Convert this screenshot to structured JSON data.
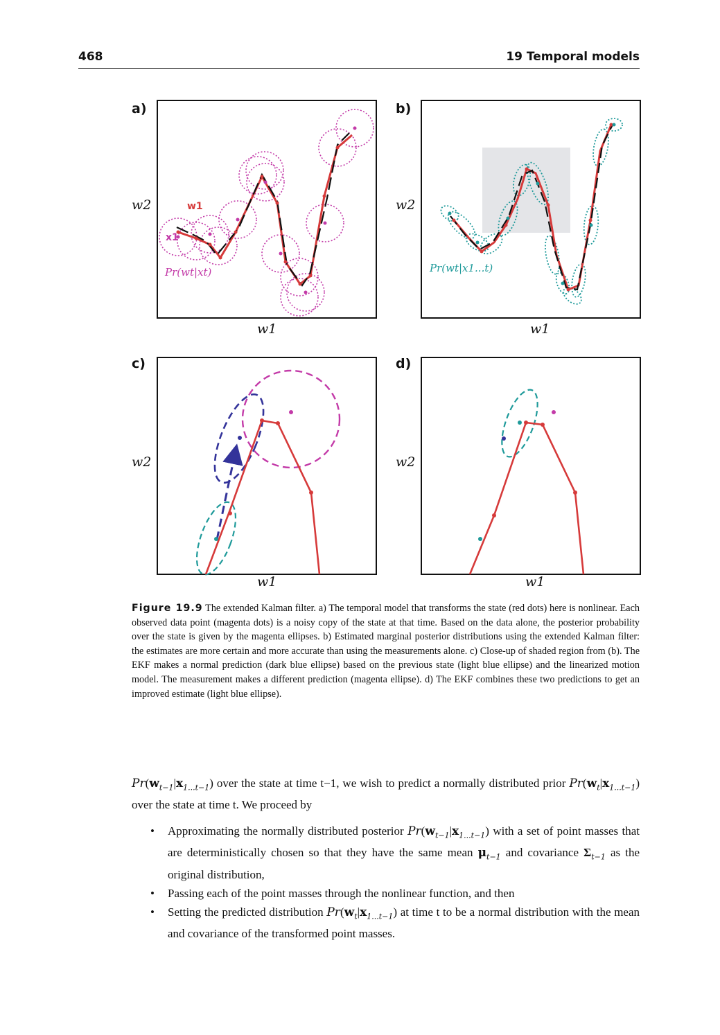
{
  "header": {
    "page_number": "468",
    "chapter_title": "19 Temporal models"
  },
  "figure": {
    "panels": [
      {
        "letter": "a)",
        "xlabel": "w1",
        "ylabel": "w2",
        "annotations": [
          "w1",
          "x1",
          "Pr(wt|xt)"
        ]
      },
      {
        "letter": "b)",
        "xlabel": "w1",
        "ylabel": "w2",
        "annotations": [
          "Pr(wt|x1...t)"
        ]
      },
      {
        "letter": "c)",
        "xlabel": "w1",
        "ylabel": "w2",
        "annotations": []
      },
      {
        "letter": "d)",
        "xlabel": "w1",
        "ylabel": "w2",
        "annotations": []
      }
    ],
    "colors": {
      "state": "#d63a3a",
      "measurement": "#c33aa8",
      "estimate": "#1e9a9a",
      "prediction": "#33339a",
      "shade": "#e4e5e8"
    },
    "caption_label": "Figure 19.9",
    "caption_text": "The extended Kalman filter. a) The temporal model that transforms the state (red dots) here is nonlinear. Each observed data point (magenta dots) is a noisy copy of the state at that time. Based on the data alone, the posterior probability over the state is given by the magenta ellipses. b) Estimated marginal posterior distributions using the extended Kalman filter: the estimates are more certain and more accurate than using the measurements alone. c) Close-up of shaded region from (b). The EKF makes a normal prediction (dark blue ellipse) based on the previous state (light blue ellipse) and the linearized motion model. The measurement makes a different prediction (magenta ellipse). d) The EKF combines these two predictions to get an improved estimate (light blue ellipse)."
  },
  "body": {
    "para_1": "over the state at time t−1, we wish to predict a normally distributed",
    "para_1b": "prior",
    "para_1c": "over the state at time t. We proceed by",
    "bullet_1a": "Approximating the normally distributed posterior",
    "bullet_1b": "with a set of point masses that are deterministically chosen so that they have the same mean",
    "bullet_1c": "and covariance",
    "bullet_1d": "as the original distribution,",
    "bullet_2": "Passing each of the point masses through the nonlinear function, and then",
    "bullet_3a": "Setting the predicted distribution",
    "bullet_3b": "at time t to be a normal distribution with the mean and covariance of the transformed point masses."
  }
}
